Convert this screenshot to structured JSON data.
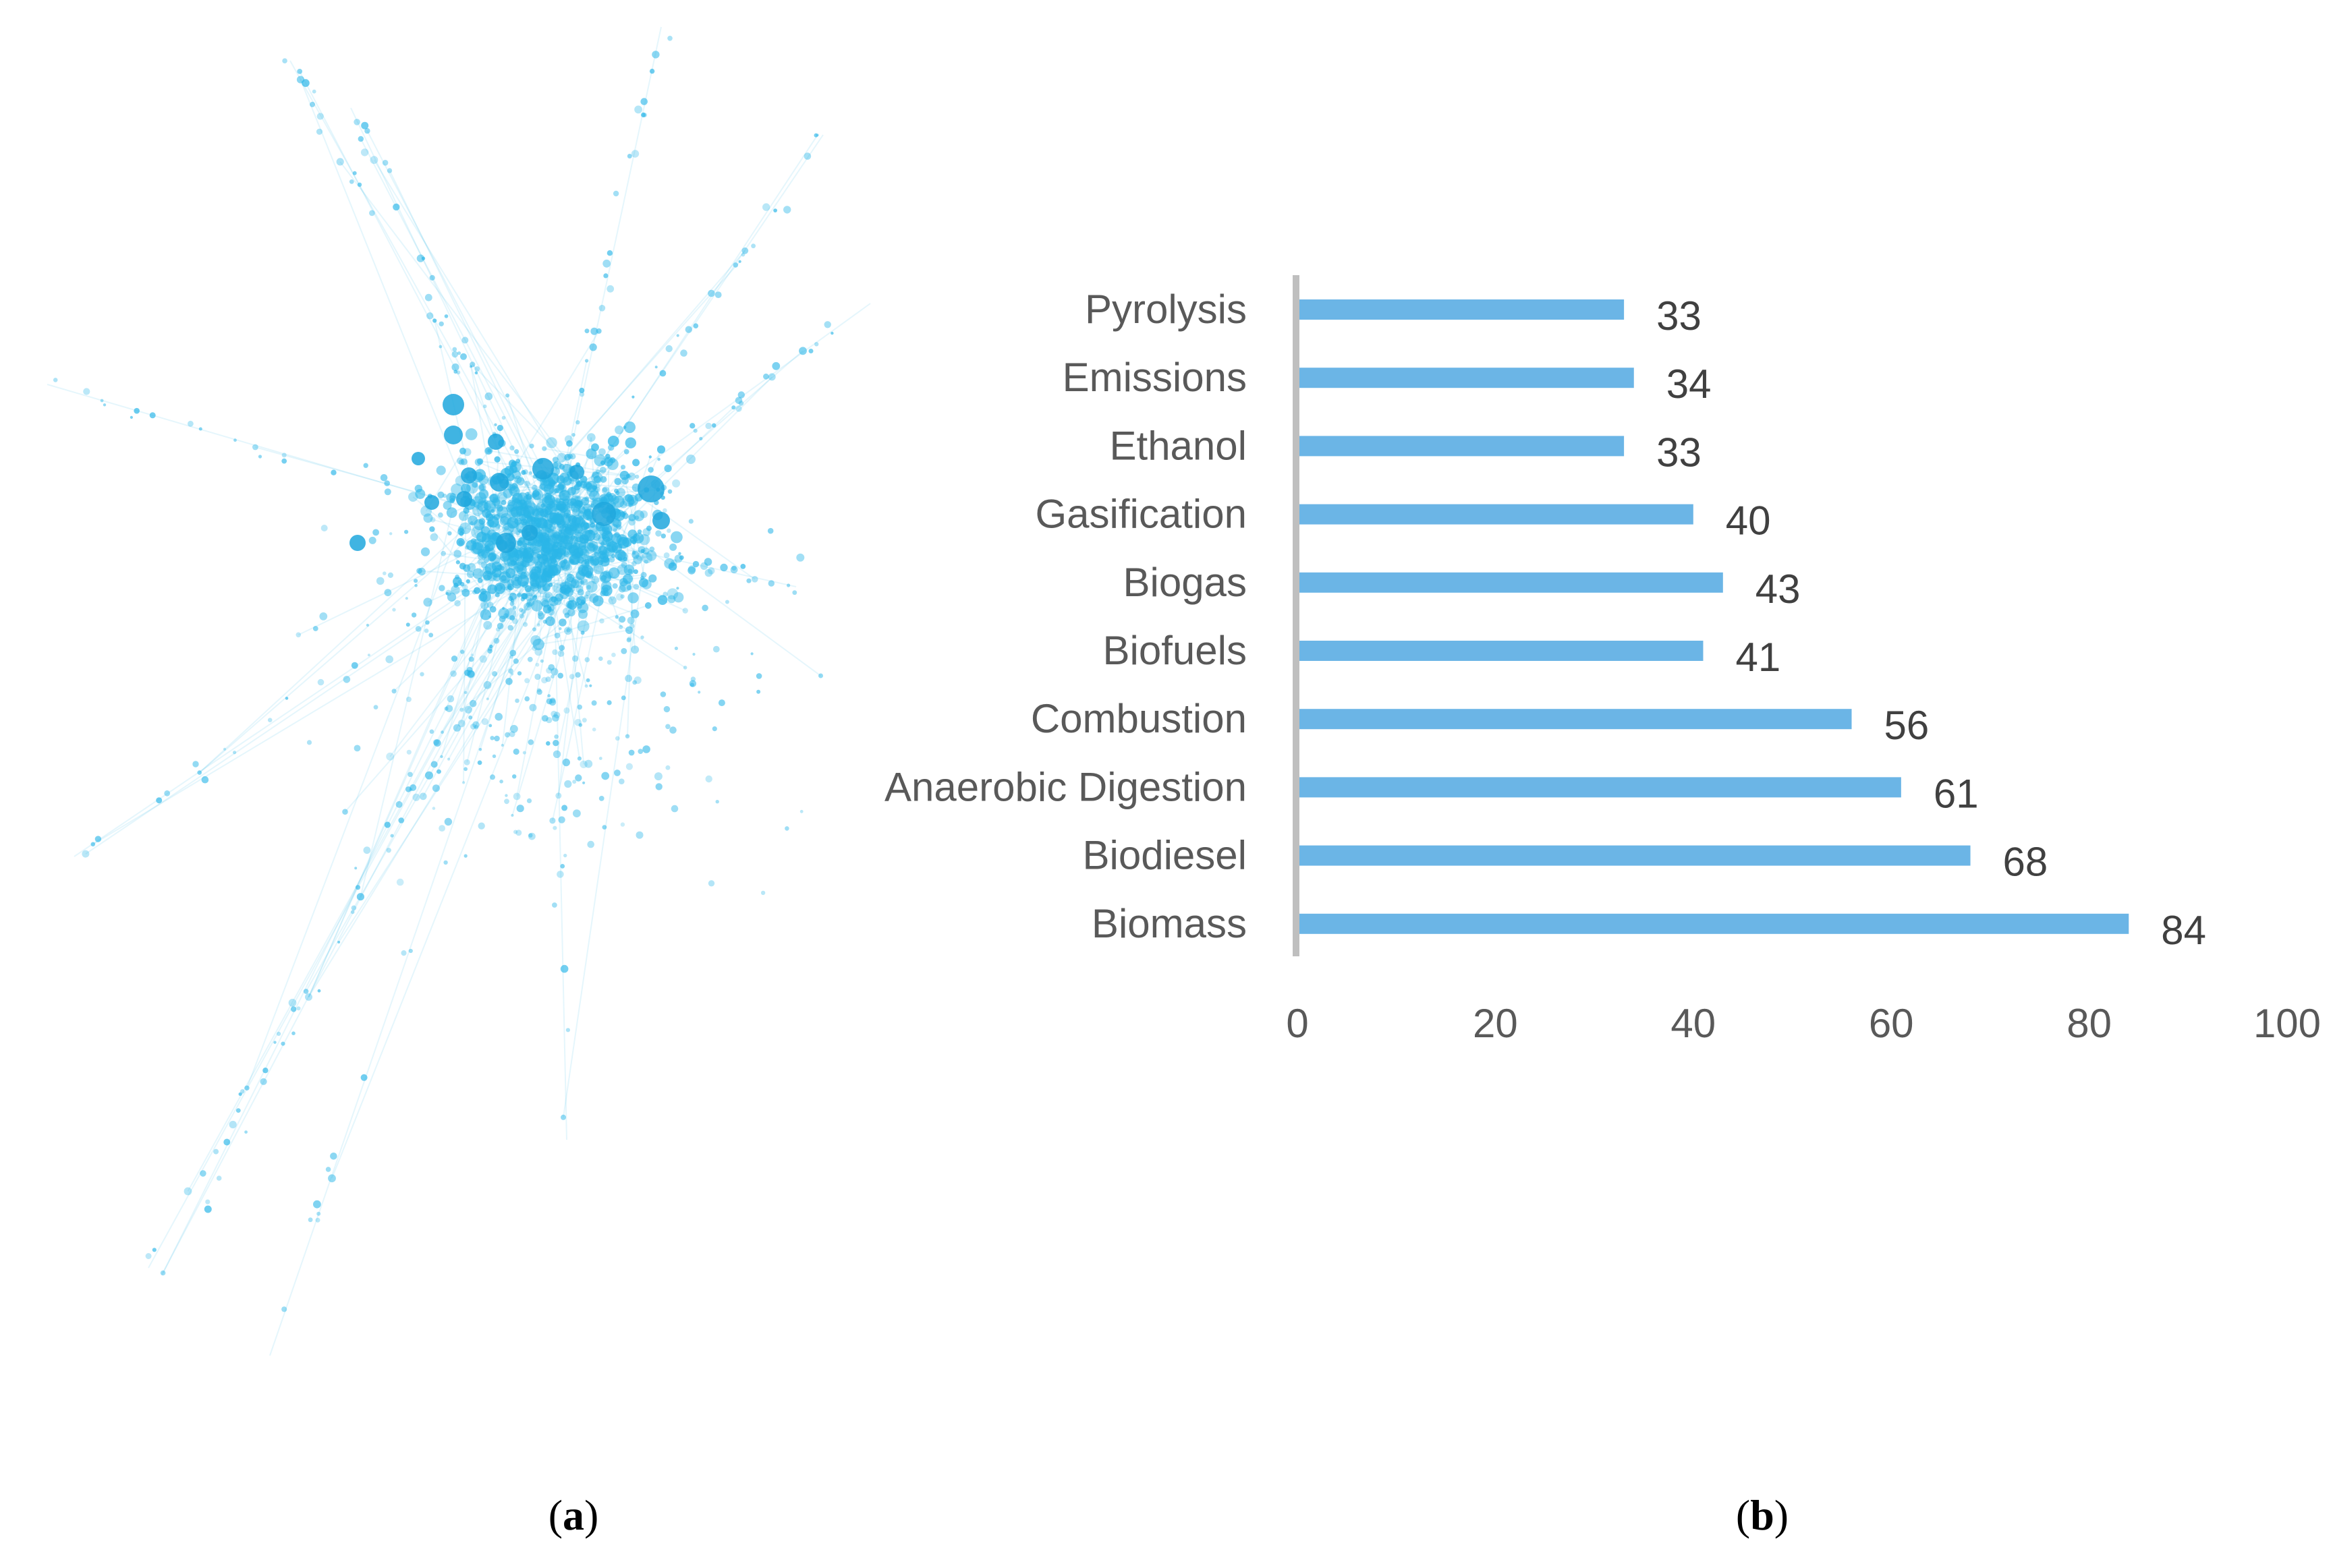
{
  "panels": {
    "a": {
      "open": "(",
      "letter": "a",
      "close": ")"
    },
    "b": {
      "open": "(",
      "letter": "b",
      "close": ")"
    }
  },
  "network": {
    "description_color": "#2bb6e8"
  },
  "chart_data": {
    "type": "bar",
    "orientation": "horizontal",
    "categories": [
      "Pyrolysis",
      "Emissions",
      "Ethanol",
      "Gasification",
      "Biogas",
      "Biofuels",
      "Combustion",
      "Anaerobic Digestion",
      "Biodiesel",
      "Biomass"
    ],
    "values": [
      33,
      34,
      33,
      40,
      43,
      41,
      56,
      61,
      68,
      84
    ],
    "xticks": [
      "0",
      "20",
      "40",
      "60",
      "80",
      "100"
    ],
    "xlim": [
      0,
      100
    ],
    "title": "",
    "xlabel": "",
    "ylabel": "",
    "grid": false,
    "bar_color": "#6bb5e6",
    "axis_color": "#bfbfbf"
  }
}
